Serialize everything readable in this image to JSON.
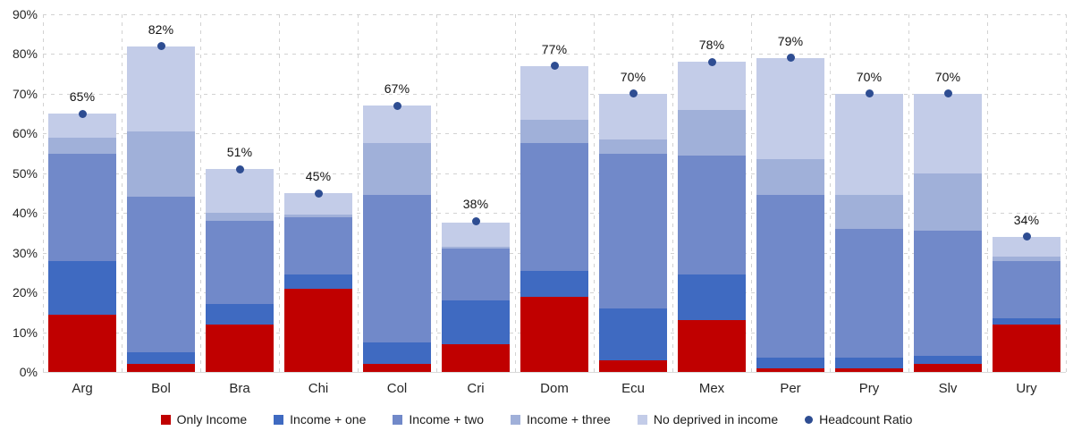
{
  "chart_data": {
    "type": "bar",
    "subtype": "stacked-column-with-point-markers",
    "categories": [
      "Arg",
      "Bol",
      "Bra",
      "Chi",
      "Col",
      "Cri",
      "Dom",
      "Ecu",
      "Mex",
      "Per",
      "Pry",
      "Slv",
      "Ury"
    ],
    "series": [
      {
        "name": "Only Income",
        "color": "#c00000",
        "values": [
          14.5,
          2,
          12,
          21,
          2,
          7,
          19,
          3,
          13,
          1,
          1,
          2,
          12
        ]
      },
      {
        "name": "Income + one",
        "color": "#3f6ac1",
        "values": [
          13.5,
          3,
          5,
          3.5,
          5.5,
          11,
          6.5,
          13,
          11.5,
          2.5,
          2.5,
          2,
          1.5
        ]
      },
      {
        "name": "Income + two",
        "color": "#7189c9",
        "values": [
          27,
          39,
          21,
          14.5,
          37,
          13,
          32,
          39,
          30,
          41,
          32.5,
          31.5,
          14.5
        ]
      },
      {
        "name": "Income + three",
        "color": "#a0b0d9",
        "values": [
          4,
          16.5,
          2,
          0.5,
          13,
          0.5,
          6,
          3.5,
          11.5,
          9,
          8.5,
          14.5,
          1
        ]
      },
      {
        "name": "No deprived in income",
        "color": "#c3cce8",
        "values": [
          6,
          21.5,
          11,
          5.5,
          9.5,
          6,
          13.5,
          11.5,
          12,
          25.5,
          25.5,
          20,
          5
        ]
      }
    ],
    "point_series": {
      "name": "Headcount Ratio",
      "color": "#2e4d92",
      "values": [
        65,
        82,
        51,
        45,
        67,
        38,
        77,
        70,
        78,
        79,
        70,
        70,
        34
      ],
      "labels": [
        "65%",
        "82%",
        "51%",
        "45%",
        "67%",
        "38%",
        "77%",
        "70%",
        "78%",
        "79%",
        "70%",
        "70%",
        "34%"
      ]
    },
    "title": "",
    "xlabel": "",
    "ylabel": "",
    "ylim": [
      0,
      90
    ],
    "ytick_step": 10,
    "ytick_labels": [
      "0%",
      "10%",
      "20%",
      "30%",
      "40%",
      "50%",
      "60%",
      "70%",
      "80%",
      "90%"
    ],
    "grid": "dashed horizontal and vertical",
    "legend_position": "bottom"
  }
}
